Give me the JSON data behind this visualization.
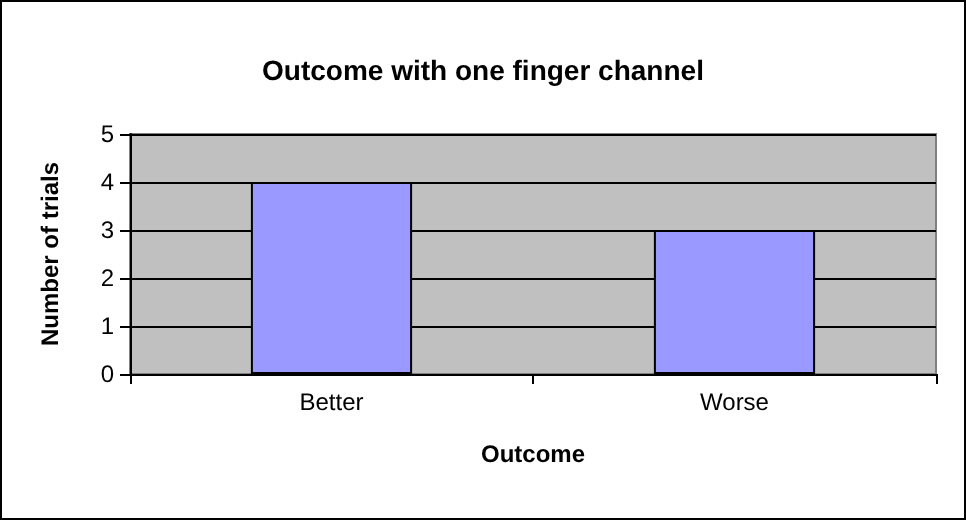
{
  "chart_data": {
    "type": "bar",
    "title": "Outcome with one finger channel",
    "xlabel": "Outcome",
    "ylabel": "Number of trials",
    "categories": [
      "Better",
      "Worse"
    ],
    "values": [
      4,
      3
    ],
    "color": "#9999ff",
    "ylim": [
      0,
      5
    ],
    "yticks": [
      0,
      1,
      2,
      3,
      4,
      5
    ],
    "grid": "y"
  }
}
